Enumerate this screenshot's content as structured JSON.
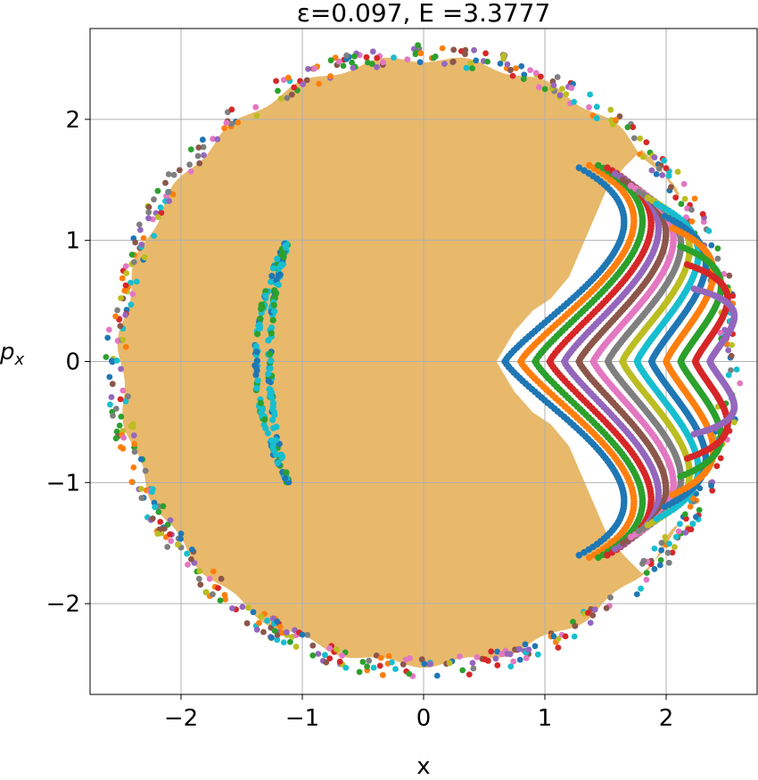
{
  "chart_data": {
    "type": "scatter",
    "title": "ε=0.097, E =3.3777",
    "xlabel": "x",
    "ylabel": "p_x",
    "xlim": [
      -2.75,
      2.75
    ],
    "ylim": [
      -2.75,
      2.75
    ],
    "grid": true,
    "x_ticks": [
      -2,
      -1,
      0,
      1,
      2
    ],
    "y_ticks": [
      -2,
      -1,
      0,
      1,
      2
    ],
    "x_tick_labels": [
      "−2",
      "−1",
      "0",
      "1",
      "2"
    ],
    "y_tick_labels": [
      "−2",
      "−1",
      "0",
      "1",
      "2"
    ],
    "chaotic_sea": {
      "color": "#e8b96b",
      "boundary_radius": 2.5,
      "notch_x": [
        0.6,
        0.75,
        0.9,
        1.05,
        1.2,
        1.35,
        1.5,
        1.65,
        1.8,
        1.95,
        2.1
      ],
      "notch_halfwidth": [
        0.0,
        0.25,
        0.42,
        0.52,
        0.7,
        1.05,
        1.4,
        1.6,
        1.75,
        1.6,
        1.35
      ]
    },
    "outer_ring": {
      "radius_min": 2.45,
      "radius_max": 2.62
    },
    "island": {
      "center_x": -1.32,
      "p_top": 1.0,
      "p_bottom": -1.0,
      "tip_x": -1.12,
      "inner_x": -1.27,
      "outer_x": -1.38
    },
    "series": [
      {
        "color": "#1f77b4",
        "x_turn": 0.67,
        "x_far": 1.72,
        "p_max": 1.6
      },
      {
        "color": "#ff7f0e",
        "x_turn": 0.8,
        "x_far": 1.8,
        "p_max": 1.62
      },
      {
        "color": "#2ca02c",
        "x_turn": 0.92,
        "x_far": 1.87,
        "p_max": 1.62
      },
      {
        "color": "#d62728",
        "x_turn": 1.04,
        "x_far": 1.94,
        "p_max": 1.6
      },
      {
        "color": "#9467bd",
        "x_turn": 1.16,
        "x_far": 2.0,
        "p_max": 1.55
      },
      {
        "color": "#8c564b",
        "x_turn": 1.28,
        "x_far": 2.06,
        "p_max": 1.5
      },
      {
        "color": "#e377c2",
        "x_turn": 1.4,
        "x_far": 2.12,
        "p_max": 1.45
      },
      {
        "color": "#7f7f7f",
        "x_turn": 1.52,
        "x_far": 2.18,
        "p_max": 1.4
      },
      {
        "color": "#bcbd22",
        "x_turn": 1.64,
        "x_far": 2.25,
        "p_max": 1.35
      },
      {
        "color": "#17becf",
        "x_turn": 1.76,
        "x_far": 2.32,
        "p_max": 1.3
      },
      {
        "color": "#1f77b4",
        "x_turn": 1.88,
        "x_far": 2.38,
        "p_max": 1.2
      },
      {
        "color": "#ff7f0e",
        "x_turn": 2.0,
        "x_far": 2.44,
        "p_max": 1.1
      },
      {
        "color": "#2ca02c",
        "x_turn": 2.12,
        "x_far": 2.5,
        "p_max": 0.95
      },
      {
        "color": "#d62728",
        "x_turn": 2.24,
        "x_far": 2.55,
        "p_max": 0.8
      },
      {
        "color": "#9467bd",
        "x_turn": 2.36,
        "x_far": 2.6,
        "p_max": 0.6
      }
    ],
    "ring_colors": [
      "#1f77b4",
      "#ff7f0e",
      "#2ca02c",
      "#d62728",
      "#9467bd",
      "#8c564b",
      "#e377c2",
      "#7f7f7f",
      "#bcbd22",
      "#17becf"
    ]
  }
}
